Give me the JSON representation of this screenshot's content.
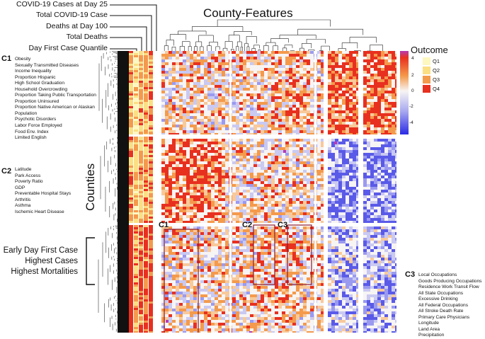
{
  "outcome_labels": [
    "COVID-19 Cases at Day 25",
    "Total COVID-19 Case",
    "Deaths at Day 100",
    "Total Deaths",
    "Day First Case Quantile"
  ],
  "title": "County-Features",
  "y_label": "Counties",
  "clusters": {
    "c1": {
      "label": "C1",
      "features": [
        "Obesity",
        "Sexually Transmitted Diseases",
        "Income Inequality",
        "Proportion Hispanic",
        "High School Graduation",
        "Household Overcrowding",
        "Proportion Taking Public Transportation",
        "Proportion Uninsured",
        "Proportion Native American or Alaskan",
        "Population",
        "Psychotic Disorders",
        "Labor Force Employed",
        "Food Env. Index",
        "Limited English"
      ]
    },
    "c2": {
      "label": "C2",
      "features": [
        "Latitude",
        "Park Access",
        "Poverty Ratio",
        "GDP",
        "Preventable Hospital Stays",
        "Arthritis",
        "Asthma",
        "Ischemic Heart Disease"
      ]
    },
    "c3": {
      "label": "C3",
      "features": [
        "Local Occupations",
        "Goods Producing Occupations",
        "Residence Work Transit Flow",
        "All State Occupations",
        "Excessive Drinking",
        "All Federal Occupations",
        "All Stroke Death Rate",
        "Primary Care Physicians",
        "Longitude",
        "Land Area",
        "Precipitation"
      ]
    }
  },
  "annotation": [
    "Early Day First Case",
    "Highest Cases",
    "Highest Mortalities"
  ],
  "legend": {
    "title": "Outcome",
    "items": [
      {
        "label": "Q1",
        "color": "#fdf7c0"
      },
      {
        "label": "Q2",
        "color": "#fbdf83"
      },
      {
        "label": "Q3",
        "color": "#f49a4c"
      },
      {
        "label": "Q4",
        "color": "#e8301f"
      }
    ],
    "ticks": [
      "4",
      "2",
      "0",
      "-2",
      "-4"
    ]
  },
  "box_labels": [
    "C1",
    "C2",
    "C3"
  ],
  "colors": {
    "heat_high": "#e8301f",
    "heat_mid_high": "#f49a4c",
    "heat_neutral": "#f7f4f4",
    "heat_low": "#3a3ae8",
    "box_outline": "#8b1a2b",
    "outlier": "#b53bb4"
  }
}
